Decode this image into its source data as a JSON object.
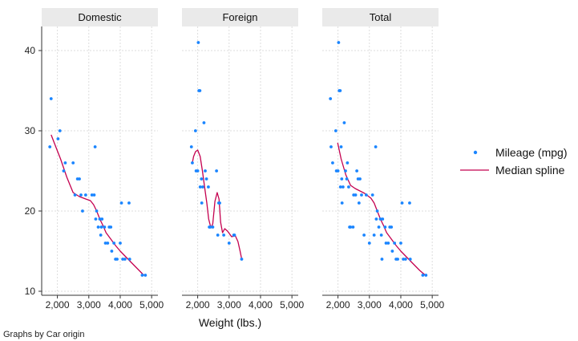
{
  "chart_data": {
    "type": "scatter",
    "by_variable_note": "Graphs by Car origin",
    "xlabel": "Weight (lbs.)",
    "ylabel": "",
    "xlim": [
      1500,
      5200
    ],
    "ylim": [
      9.5,
      43
    ],
    "xticks": [
      2000,
      3000,
      4000,
      5000
    ],
    "xtick_labels": [
      "2,000",
      "3,000",
      "4,000",
      "5,000"
    ],
    "yticks": [
      10,
      20,
      30,
      40
    ],
    "ytick_labels": [
      "10",
      "20",
      "30",
      "40"
    ],
    "grid": true,
    "legend_position": "right",
    "colors": {
      "points": "#1a85ff",
      "spline": "#c4004f",
      "strip": "#eaeaea",
      "grid": "#dddddd",
      "axis": "#333333"
    },
    "series_labels": {
      "points": "Mileage (mpg)",
      "spline": "Median spline"
    },
    "panels": [
      {
        "title": "Domestic",
        "points": [
          [
            1800,
            34
          ],
          [
            1760,
            28
          ],
          [
            2020,
            29
          ],
          [
            2080,
            30
          ],
          [
            2200,
            25
          ],
          [
            2250,
            26
          ],
          [
            2500,
            26
          ],
          [
            2560,
            22
          ],
          [
            2640,
            24
          ],
          [
            2700,
            24
          ],
          [
            2750,
            22
          ],
          [
            2800,
            20
          ],
          [
            2900,
            22
          ],
          [
            3100,
            22
          ],
          [
            3170,
            22
          ],
          [
            3200,
            28
          ],
          [
            3220,
            19
          ],
          [
            3250,
            20
          ],
          [
            3300,
            18
          ],
          [
            3350,
            19
          ],
          [
            3380,
            17
          ],
          [
            3400,
            18
          ],
          [
            3420,
            19
          ],
          [
            3500,
            18
          ],
          [
            3530,
            16
          ],
          [
            3600,
            16
          ],
          [
            3650,
            18
          ],
          [
            3700,
            18
          ],
          [
            3730,
            15
          ],
          [
            3800,
            16
          ],
          [
            3850,
            14
          ],
          [
            3900,
            14
          ],
          [
            4000,
            16
          ],
          [
            4040,
            21
          ],
          [
            4080,
            14
          ],
          [
            4150,
            14
          ],
          [
            4280,
            21
          ],
          [
            4300,
            14
          ],
          [
            4700,
            12
          ],
          [
            4800,
            12
          ]
        ],
        "spline": [
          [
            1800,
            29.5
          ],
          [
            1950,
            28
          ],
          [
            2100,
            26.5
          ],
          [
            2300,
            24.2
          ],
          [
            2500,
            22.3
          ],
          [
            2700,
            21.8
          ],
          [
            2900,
            21.5
          ],
          [
            3050,
            21.3
          ],
          [
            3150,
            20.8
          ],
          [
            3250,
            20
          ],
          [
            3350,
            19
          ],
          [
            3450,
            18.2
          ],
          [
            3550,
            17.3
          ],
          [
            3700,
            16.5
          ],
          [
            3850,
            15.7
          ],
          [
            4000,
            15
          ],
          [
            4200,
            14.2
          ],
          [
            4400,
            13.4
          ],
          [
            4600,
            12.6
          ],
          [
            4750,
            12
          ]
        ]
      },
      {
        "title": "Foreign",
        "points": [
          [
            1800,
            28
          ],
          [
            1830,
            26
          ],
          [
            1930,
            30
          ],
          [
            1950,
            25
          ],
          [
            2000,
            25
          ],
          [
            2020,
            41
          ],
          [
            2040,
            35
          ],
          [
            2070,
            35
          ],
          [
            2080,
            23
          ],
          [
            2120,
            24
          ],
          [
            2130,
            21
          ],
          [
            2160,
            23
          ],
          [
            2200,
            31
          ],
          [
            2240,
            25
          ],
          [
            2280,
            24
          ],
          [
            2340,
            23
          ],
          [
            2370,
            18
          ],
          [
            2400,
            18
          ],
          [
            2480,
            18
          ],
          [
            2600,
            25
          ],
          [
            2640,
            17
          ],
          [
            2670,
            21
          ],
          [
            2700,
            21
          ],
          [
            2830,
            17
          ],
          [
            3000,
            16
          ],
          [
            3150,
            17
          ],
          [
            3170,
            17
          ],
          [
            3400,
            14
          ]
        ],
        "spline": [
          [
            1830,
            26
          ],
          [
            1870,
            26.8
          ],
          [
            1930,
            27.4
          ],
          [
            2000,
            27.6
          ],
          [
            2080,
            26.8
          ],
          [
            2150,
            25
          ],
          [
            2220,
            23
          ],
          [
            2290,
            21
          ],
          [
            2350,
            19
          ],
          [
            2420,
            17.9
          ],
          [
            2480,
            18.4
          ],
          [
            2550,
            21.2
          ],
          [
            2620,
            22.3
          ],
          [
            2680,
            21.5
          ],
          [
            2730,
            18.6
          ],
          [
            2790,
            17.3
          ],
          [
            2860,
            17.8
          ],
          [
            2950,
            17.5
          ],
          [
            3080,
            16.8
          ],
          [
            3200,
            16.9
          ],
          [
            3280,
            16.2
          ],
          [
            3350,
            15
          ],
          [
            3400,
            14
          ]
        ]
      },
      {
        "title": "Total",
        "points": [
          [
            1760,
            34
          ],
          [
            1780,
            28
          ],
          [
            1830,
            26
          ],
          [
            1930,
            30
          ],
          [
            1950,
            25
          ],
          [
            2000,
            25
          ],
          [
            2020,
            41
          ],
          [
            2040,
            35
          ],
          [
            2070,
            35
          ],
          [
            2080,
            23
          ],
          [
            2100,
            28
          ],
          [
            2120,
            24
          ],
          [
            2130,
            21
          ],
          [
            2160,
            23
          ],
          [
            2200,
            31
          ],
          [
            2240,
            25
          ],
          [
            2280,
            24
          ],
          [
            2300,
            26
          ],
          [
            2340,
            23
          ],
          [
            2370,
            18
          ],
          [
            2400,
            18
          ],
          [
            2480,
            18
          ],
          [
            2500,
            22
          ],
          [
            2560,
            22
          ],
          [
            2600,
            25
          ],
          [
            2640,
            24
          ],
          [
            2670,
            21
          ],
          [
            2700,
            24
          ],
          [
            2750,
            22
          ],
          [
            2830,
            17
          ],
          [
            2900,
            22
          ],
          [
            3000,
            16
          ],
          [
            3100,
            22
          ],
          [
            3150,
            17
          ],
          [
            3200,
            28
          ],
          [
            3220,
            19
          ],
          [
            3250,
            20
          ],
          [
            3300,
            18
          ],
          [
            3350,
            19
          ],
          [
            3380,
            17
          ],
          [
            3400,
            14
          ],
          [
            3420,
            19
          ],
          [
            3500,
            18
          ],
          [
            3530,
            16
          ],
          [
            3600,
            16
          ],
          [
            3650,
            18
          ],
          [
            3700,
            18
          ],
          [
            3730,
            15
          ],
          [
            3800,
            16
          ],
          [
            3850,
            14
          ],
          [
            3900,
            14
          ],
          [
            4000,
            16
          ],
          [
            4040,
            21
          ],
          [
            4080,
            14
          ],
          [
            4150,
            14
          ],
          [
            4280,
            21
          ],
          [
            4300,
            14
          ],
          [
            4700,
            12
          ],
          [
            4800,
            12
          ]
        ],
        "spline": [
          [
            1990,
            28.5
          ],
          [
            2100,
            26.5
          ],
          [
            2250,
            24.5
          ],
          [
            2400,
            23.2
          ],
          [
            2550,
            22.8
          ],
          [
            2700,
            22.5
          ],
          [
            2850,
            22.2
          ],
          [
            2950,
            21.9
          ],
          [
            3050,
            21.6
          ],
          [
            3150,
            21
          ],
          [
            3250,
            20
          ],
          [
            3350,
            19
          ],
          [
            3450,
            18.2
          ],
          [
            3550,
            17.3
          ],
          [
            3700,
            16.5
          ],
          [
            3850,
            15.7
          ],
          [
            4000,
            15
          ],
          [
            4200,
            14.2
          ],
          [
            4400,
            13.4
          ],
          [
            4600,
            12.6
          ],
          [
            4780,
            12
          ]
        ]
      }
    ]
  }
}
